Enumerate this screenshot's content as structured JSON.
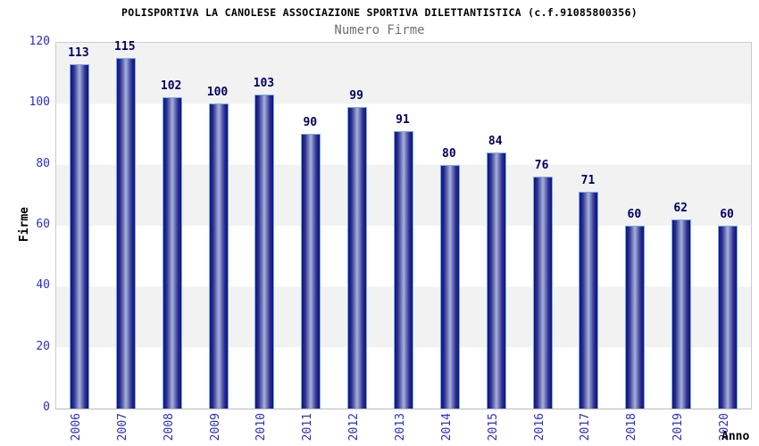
{
  "chart_data": {
    "type": "bar",
    "title": "POLISPORTIVA LA CANOLESE ASSOCIAZIONE SPORTIVA DILETTANTISTICA (c.f.91085800356)",
    "subtitle": "Numero Firme",
    "xlabel": "Anno",
    "ylabel": "Firme",
    "categories": [
      "2006",
      "2007",
      "2008",
      "2009",
      "2010",
      "2011",
      "2012",
      "2013",
      "2014",
      "2015",
      "2016",
      "2017",
      "2018",
      "2019",
      "2020"
    ],
    "values": [
      113,
      115,
      102,
      100,
      103,
      90,
      99,
      91,
      80,
      84,
      76,
      71,
      60,
      62,
      60
    ],
    "ylim": [
      0,
      120
    ],
    "yticks": [
      0,
      20,
      40,
      60,
      80,
      100,
      120
    ],
    "grid": "horizontal-alternating-bands",
    "legend": "none",
    "colors": {
      "tick_label_blue": "#2d2dcc",
      "value_label_navy": "#000066",
      "bar_gradient_dark": "#12127a",
      "bar_gradient_mid": "#2d2d94",
      "bar_gradient_light": "#a9b1d9",
      "bar_border_lightblue": "#6fb0e8",
      "band_gray": "#f2f2f2",
      "band_white": "#ffffff",
      "plot_border": "#cccccc",
      "title_color": "#000000",
      "subtitle_gray": "#707070"
    }
  }
}
